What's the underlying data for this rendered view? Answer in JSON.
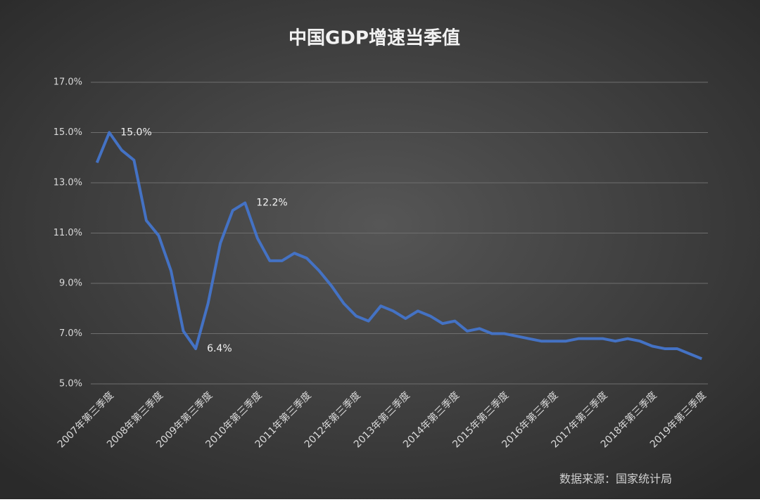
{
  "chart_data": {
    "type": "line",
    "title": "中国GDP增速当季值",
    "categories": [
      null,
      "2007年第三季度",
      null,
      null,
      null,
      "2008年第三季度",
      null,
      null,
      null,
      "2009年第三季度",
      null,
      null,
      null,
      "2010年第三季度",
      null,
      null,
      null,
      "2011年第三季度",
      null,
      null,
      null,
      "2012年第三季度",
      null,
      null,
      null,
      "2013年第三季度",
      null,
      null,
      null,
      "2014年第三季度",
      null,
      null,
      null,
      "2015年第三季度",
      null,
      null,
      null,
      "2016年第三季度",
      null,
      null,
      null,
      "2017年第三季度",
      null,
      null,
      null,
      "2018年第三季度",
      null,
      null,
      null,
      "2019年第三季度"
    ],
    "values": [
      13.8,
      15.0,
      14.3,
      13.9,
      11.5,
      10.9,
      9.5,
      7.1,
      6.4,
      8.2,
      10.6,
      11.9,
      12.2,
      10.8,
      9.9,
      9.9,
      10.2,
      10.0,
      9.5,
      8.9,
      8.2,
      7.7,
      7.5,
      8.1,
      7.9,
      7.6,
      7.9,
      7.7,
      7.4,
      7.5,
      7.1,
      7.2,
      7.0,
      7.0,
      6.9,
      6.8,
      6.7,
      6.7,
      6.7,
      6.8,
      6.8,
      6.8,
      6.7,
      6.8,
      6.7,
      6.5,
      6.4,
      6.4,
      6.2,
      6.0
    ],
    "value_labels": [
      null,
      "15.0%",
      null,
      null,
      null,
      null,
      null,
      null,
      "6.4%",
      null,
      null,
      null,
      "12.2%",
      null,
      null,
      null,
      null,
      null,
      null,
      null,
      null,
      null,
      null,
      null,
      null,
      null,
      null,
      null,
      null,
      null,
      null,
      null,
      null,
      null,
      null,
      null,
      null,
      null,
      null,
      null,
      null,
      null,
      null,
      null,
      null,
      null,
      null,
      null,
      null,
      null
    ],
    "color": "#4472c4",
    "ylim": [
      5,
      17
    ],
    "yticks": [
      {
        "value": 5,
        "label": "5.0%"
      },
      {
        "value": 7,
        "label": "7.0%"
      },
      {
        "value": 9,
        "label": "9.0%"
      },
      {
        "value": 11,
        "label": "11.0%"
      },
      {
        "value": 13,
        "label": "13.0%"
      },
      {
        "value": 15,
        "label": "15.0%"
      },
      {
        "value": 17,
        "label": "17.0%"
      }
    ],
    "grid": true,
    "source": "数据来源：国家统计局"
  }
}
